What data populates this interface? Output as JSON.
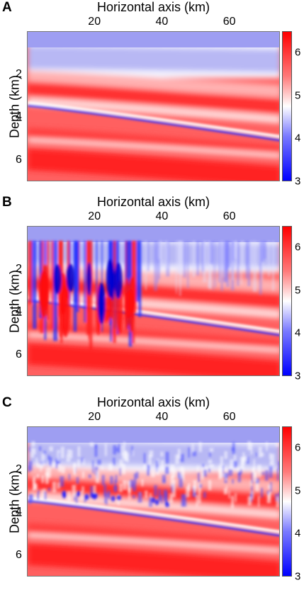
{
  "chart_data": [
    {
      "panel": "A",
      "type": "heatmap",
      "xlabel": "Horizontal axis (km)",
      "ylabel": "Depth (km)",
      "xticks": [
        20,
        40,
        60
      ],
      "yticks": [
        2,
        4,
        6
      ],
      "xlim": [
        0,
        75
      ],
      "ylim": [
        0,
        7
      ],
      "colorbar_ticks": [
        3,
        4,
        5,
        6
      ],
      "colorbar_range": [
        3,
        6.5
      ],
      "colormap": [
        "#0000ff",
        "#ffffff",
        "#ff0000"
      ],
      "style": "smooth"
    },
    {
      "panel": "B",
      "type": "heatmap",
      "xlabel": "Horizontal axis (km)",
      "ylabel": "Depth (km)",
      "xticks": [
        20,
        40,
        60
      ],
      "yticks": [
        2,
        4,
        6
      ],
      "xlim": [
        0,
        75
      ],
      "ylim": [
        0,
        7
      ],
      "colorbar_ticks": [
        3,
        4,
        5,
        6
      ],
      "colorbar_range": [
        3,
        6.5
      ],
      "colormap": [
        "#0000ff",
        "#ffffff",
        "#ff0000"
      ],
      "style": "vertical-streaks"
    },
    {
      "panel": "C",
      "type": "heatmap",
      "xlabel": "Horizontal axis (km)",
      "ylabel": "Depth (km)",
      "xticks": [
        20,
        40,
        60
      ],
      "yticks": [
        2,
        4,
        6
      ],
      "xlim": [
        0,
        75
      ],
      "ylim": [
        0,
        7
      ],
      "colorbar_ticks": [
        3,
        4,
        5,
        6
      ],
      "colorbar_range": [
        3,
        6.5
      ],
      "colormap": [
        "#0000ff",
        "#ffffff",
        "#ff0000"
      ],
      "style": "noisy"
    }
  ]
}
